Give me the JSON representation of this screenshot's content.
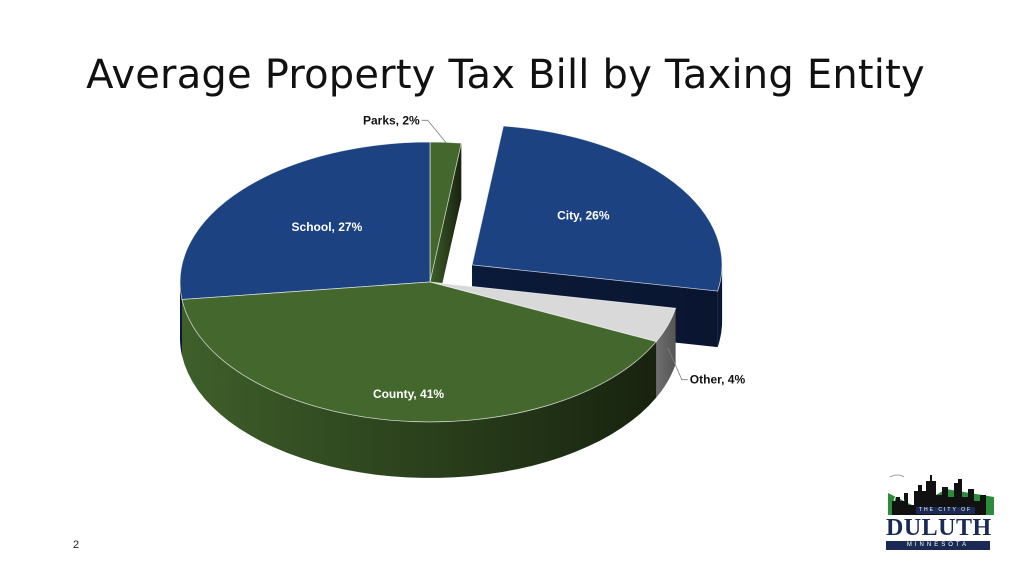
{
  "title": "Average Property Tax Bill by Taxing Entity",
  "page_number": "2",
  "colors": {
    "green_top": "#44672e",
    "green_side": "#1f2e14",
    "blue_top": "#1c4281",
    "blue_side": "#0b1a3a",
    "gray_top": "#d9d9d9",
    "gray_side": "#6e6e6e"
  },
  "chart_data": {
    "type": "pie",
    "style": "3d-exploded",
    "title": "",
    "slices": [
      {
        "label": "Parks, 2%",
        "name": "Parks",
        "value": 2,
        "color": "green",
        "label_placement": "outside-leader"
      },
      {
        "label": "City, 26%",
        "name": "City",
        "value": 26,
        "color": "blue",
        "label_placement": "inside",
        "exploded": true
      },
      {
        "label": "Other, 4%",
        "name": "Other",
        "value": 4,
        "color": "gray",
        "label_placement": "outside-leader"
      },
      {
        "label": "County, 41%",
        "name": "County",
        "value": 41,
        "color": "green",
        "label_placement": "inside"
      },
      {
        "label": "School, 27%",
        "name": "School",
        "value": 27,
        "color": "blue",
        "label_placement": "inside"
      }
    ]
  },
  "logo": {
    "name": "DULUTH",
    "top_text": "THE CITY OF",
    "sub_text": "MINNESOTA"
  }
}
